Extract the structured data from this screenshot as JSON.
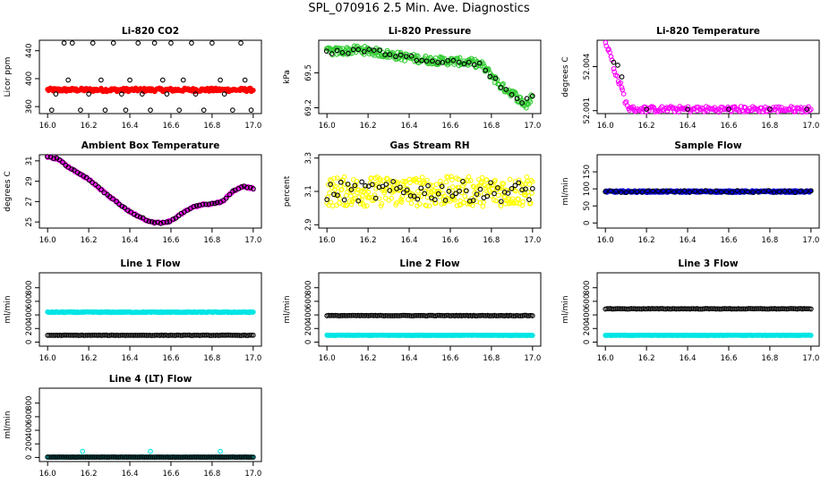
{
  "page_title": "SPL_070916  2.5 Min. Ave. Diagnostics",
  "chart_data": [
    {
      "id": "co2",
      "type": "scatter",
      "title": "Li-820 CO2",
      "ylabel": "Licor ppm",
      "xlabel": "",
      "xlim": [
        16.0,
        17.0
      ],
      "ylim": [
        350,
        455
      ],
      "xticks": [
        "16.0",
        "16.2",
        "16.4",
        "16.6",
        "16.8",
        "17.0"
      ],
      "yticks": [
        {
          "v": 360,
          "label": "360"
        },
        {
          "v": 400,
          "label": "400"
        },
        {
          "v": 440,
          "label": "440"
        }
      ],
      "series": [
        {
          "name": "co2-dense",
          "color": "#ff0000",
          "kind": "band",
          "base": 384,
          "jitter": 2.5,
          "n": 220,
          "filled": true
        },
        {
          "name": "co2-outliers",
          "color": "#000000",
          "kind": "points",
          "x": [
            16.02,
            16.04,
            16.08,
            16.1,
            16.12,
            16.16,
            16.2,
            16.22,
            16.26,
            16.28,
            16.32,
            16.36,
            16.38,
            16.4,
            16.44,
            16.46,
            16.5,
            16.52,
            16.56,
            16.58,
            16.6,
            16.64,
            16.66,
            16.7,
            16.72,
            16.76,
            16.8,
            16.84,
            16.86,
            16.9,
            16.94,
            16.96,
            16.99
          ],
          "y": [
            355,
            378,
            451,
            398,
            451,
            355,
            378,
            451,
            398,
            355,
            451,
            378,
            355,
            398,
            451,
            378,
            355,
            451,
            398,
            378,
            451,
            355,
            398,
            451,
            378,
            355,
            451,
            398,
            378,
            355,
            451,
            398,
            355
          ]
        }
      ]
    },
    {
      "id": "pressure",
      "type": "scatter",
      "title": "Li-820 Pressure",
      "ylabel": "kPa",
      "xlabel": "",
      "xlim": [
        16.0,
        17.0
      ],
      "ylim": [
        69.15,
        69.78
      ],
      "xticks": [
        "16.0",
        "16.2",
        "16.4",
        "16.6",
        "16.8",
        "17.0"
      ],
      "yticks": [
        {
          "v": 69.2,
          "label": "69.2"
        },
        {
          "v": 69.5,
          "label": "69.5"
        }
      ],
      "series": [
        {
          "name": "pressure-dense",
          "color": "#33cc33",
          "kind": "curve",
          "xs": [
            16.0,
            16.1,
            16.15,
            16.2,
            16.3,
            16.4,
            16.5,
            16.6,
            16.7,
            16.75,
            16.8,
            16.85,
            16.9,
            16.95,
            16.97,
            17.0
          ],
          "ys": [
            69.68,
            69.69,
            69.7,
            69.69,
            69.66,
            69.63,
            69.61,
            69.6,
            69.59,
            69.57,
            69.48,
            69.38,
            69.33,
            69.25,
            69.22,
            69.3
          ],
          "jitter": 0.035,
          "n": 260,
          "filled": false
        },
        {
          "name": "pressure-outliers",
          "color": "#000000",
          "kind": "curve",
          "xs": [
            16.0,
            16.2,
            16.4,
            16.6,
            16.75,
            16.85,
            16.95,
            17.0
          ],
          "ys": [
            69.67,
            69.7,
            69.63,
            69.6,
            69.57,
            69.38,
            69.25,
            69.32
          ],
          "jitter": 0.02,
          "n": 40,
          "filled": false
        }
      ]
    },
    {
      "id": "licor-temp",
      "type": "scatter",
      "title": "Li-820 Temperature",
      "ylabel": "degrees C",
      "xlabel": "",
      "xlim": [
        16.0,
        17.0
      ],
      "ylim": [
        52.0008,
        52.0058
      ],
      "xticks": [
        "16.0",
        "16.2",
        "16.4",
        "16.6",
        "16.8",
        "17.0"
      ],
      "yticks": [
        {
          "v": 52.001,
          "label": "52.001"
        },
        {
          "v": 52.004,
          "label": "52.004"
        }
      ],
      "series": [
        {
          "name": "licor-temp-dense",
          "color": "#ff00ff",
          "kind": "curve",
          "xs": [
            16.0,
            16.02,
            16.05,
            16.08,
            16.1,
            16.12,
            16.2,
            16.4,
            16.6,
            16.8,
            17.0
          ],
          "ys": [
            52.0055,
            52.005,
            52.0035,
            52.0025,
            52.0015,
            52.0011,
            52.0011,
            52.0011,
            52.0011,
            52.0011,
            52.0011
          ],
          "jitter": 0.0002,
          "n": 180,
          "filled": false
        },
        {
          "name": "licor-temp-black",
          "color": "#000000",
          "kind": "points",
          "x": [
            16.04,
            16.06,
            16.08,
            16.2,
            16.4,
            16.6,
            16.8,
            16.98
          ],
          "y": [
            52.0043,
            52.0041,
            52.0033,
            52.0011,
            52.0011,
            52.0011,
            52.0011,
            52.0011
          ]
        }
      ]
    },
    {
      "id": "box-temp",
      "type": "scatter",
      "title": "Ambient Box Temperature",
      "ylabel": "degrees C",
      "xlabel": "",
      "xlim": [
        16.0,
        17.0
      ],
      "ylim": [
        24.4,
        31.6
      ],
      "xticks": [
        "16.0",
        "16.2",
        "16.4",
        "16.6",
        "16.8",
        "17.0"
      ],
      "yticks": [
        {
          "v": 25,
          "label": "25"
        },
        {
          "v": 27,
          "label": "27"
        },
        {
          "v": 29,
          "label": "29"
        },
        {
          "v": 31,
          "label": "31"
        }
      ],
      "series": [
        {
          "name": "box-temp-dense",
          "color": "#ff00ff",
          "kind": "curve",
          "xs": [
            16.0,
            16.05,
            16.1,
            16.2,
            16.3,
            16.4,
            16.5,
            16.55,
            16.6,
            16.65,
            16.7,
            16.75,
            16.8,
            16.85,
            16.9,
            16.95,
            17.0
          ],
          "ys": [
            31.4,
            31.2,
            30.4,
            29.2,
            27.5,
            26.0,
            25.0,
            24.9,
            25.1,
            25.8,
            26.4,
            26.7,
            26.8,
            27.0,
            28.0,
            28.5,
            28.3
          ],
          "jitter": 0.08,
          "n": 200,
          "filled": false
        },
        {
          "name": "box-temp-black",
          "color": "#000000",
          "kind": "curve",
          "xs": [
            16.0,
            16.05,
            16.1,
            16.2,
            16.3,
            16.4,
            16.5,
            16.55,
            16.6,
            16.65,
            16.7,
            16.75,
            16.8,
            16.85,
            16.9,
            16.95,
            17.0
          ],
          "ys": [
            31.4,
            31.2,
            30.4,
            29.2,
            27.5,
            26.0,
            25.0,
            24.9,
            25.1,
            25.8,
            26.4,
            26.7,
            26.8,
            27.0,
            28.0,
            28.5,
            28.3
          ],
          "jitter": 0.05,
          "n": 70,
          "filled": false
        }
      ]
    },
    {
      "id": "rh",
      "type": "scatter",
      "title": "Gas Stream RH",
      "ylabel": "percent",
      "xlabel": "",
      "xlim": [
        16.0,
        17.0
      ],
      "ylim": [
        2.88,
        3.32
      ],
      "xticks": [
        "16.0",
        "16.2",
        "16.4",
        "16.6",
        "16.8",
        "17.0"
      ],
      "yticks": [
        {
          "v": 2.9,
          "label": "2.9"
        },
        {
          "v": 3.1,
          "label": "3.1"
        },
        {
          "v": 3.3,
          "label": "3.3"
        }
      ],
      "series": [
        {
          "name": "rh-dense",
          "color": "#ffff00",
          "kind": "band",
          "base": 3.1,
          "jitter": 0.09,
          "n": 320,
          "filled": false
        },
        {
          "name": "rh-black",
          "color": "#000000",
          "kind": "band",
          "base": 3.1,
          "jitter": 0.06,
          "n": 60,
          "filled": false
        }
      ]
    },
    {
      "id": "sample-flow",
      "type": "scatter",
      "title": "Sample Flow",
      "ylabel": "ml/min",
      "xlabel": "",
      "xlim": [
        16.0,
        17.0
      ],
      "ylim": [
        -15,
        200
      ],
      "xticks": [
        "16.0",
        "16.2",
        "16.4",
        "16.6",
        "16.8",
        "17.0"
      ],
      "yticks": [
        {
          "v": 0,
          "label": "0"
        },
        {
          "v": 50,
          "label": "50"
        },
        {
          "v": 100,
          "label": "100"
        },
        {
          "v": 150,
          "label": "150"
        }
      ],
      "series": [
        {
          "name": "sample-flow-dense",
          "color": "#0000cc",
          "kind": "band",
          "base": 92,
          "jitter": 2.5,
          "n": 260,
          "filled": true
        },
        {
          "name": "sample-flow-black",
          "color": "#000000",
          "kind": "band",
          "base": 92,
          "jitter": 3,
          "n": 40,
          "filled": false
        }
      ]
    },
    {
      "id": "line1",
      "type": "scatter",
      "title": "Line 1 Flow",
      "ylabel": "ml/min",
      "xlabel": "",
      "xlim": [
        16.0,
        17.0
      ],
      "ylim": [
        -60,
        1020
      ],
      "xticks": [
        "16.0",
        "16.2",
        "16.4",
        "16.6",
        "16.8",
        "17.0"
      ],
      "yticks": [
        {
          "v": 0,
          "label": "0"
        },
        {
          "v": 200,
          "label": "200"
        },
        {
          "v": 400,
          "label": "400"
        },
        {
          "v": 600,
          "label": "600"
        },
        {
          "v": 800,
          "label": "800"
        }
      ],
      "series": [
        {
          "name": "line1-cyan",
          "color": "#00e5e5",
          "kind": "band",
          "base": 440,
          "jitter": 6,
          "n": 220,
          "filled": true
        },
        {
          "name": "line1-black",
          "color": "#000000",
          "kind": "band",
          "base": 100,
          "jitter": 3,
          "n": 120,
          "filled": false
        }
      ]
    },
    {
      "id": "line2",
      "type": "scatter",
      "title": "Line 2 Flow",
      "ylabel": "ml/min",
      "xlabel": "",
      "xlim": [
        16.0,
        17.0
      ],
      "ylim": [
        -60,
        1020
      ],
      "xticks": [
        "16.0",
        "16.2",
        "16.4",
        "16.6",
        "16.8",
        "17.0"
      ],
      "yticks": [
        {
          "v": 0,
          "label": "0"
        },
        {
          "v": 200,
          "label": "200"
        },
        {
          "v": 400,
          "label": "400"
        },
        {
          "v": 600,
          "label": "600"
        },
        {
          "v": 800,
          "label": "800"
        }
      ],
      "series": [
        {
          "name": "line2-cyan",
          "color": "#00e5e5",
          "kind": "band",
          "base": 100,
          "jitter": 3,
          "n": 220,
          "filled": true
        },
        {
          "name": "line2-black",
          "color": "#000000",
          "kind": "band",
          "base": 390,
          "jitter": 4,
          "n": 120,
          "filled": false
        }
      ]
    },
    {
      "id": "line3",
      "type": "scatter",
      "title": "Line 3 Flow",
      "ylabel": "ml/min",
      "xlabel": "",
      "xlim": [
        16.0,
        17.0
      ],
      "ylim": [
        -60,
        1020
      ],
      "xticks": [
        "16.0",
        "16.2",
        "16.4",
        "16.6",
        "16.8",
        "17.0"
      ],
      "yticks": [
        {
          "v": 0,
          "label": "0"
        },
        {
          "v": 200,
          "label": "200"
        },
        {
          "v": 400,
          "label": "400"
        },
        {
          "v": 600,
          "label": "600"
        },
        {
          "v": 800,
          "label": "800"
        }
      ],
      "series": [
        {
          "name": "line3-cyan",
          "color": "#00e5e5",
          "kind": "band",
          "base": 100,
          "jitter": 3,
          "n": 220,
          "filled": true
        },
        {
          "name": "line3-black",
          "color": "#000000",
          "kind": "band",
          "base": 490,
          "jitter": 4,
          "n": 120,
          "filled": false
        }
      ]
    },
    {
      "id": "line4",
      "type": "scatter",
      "title": "Line 4 (LT) Flow",
      "ylabel": "ml/min",
      "xlabel": "",
      "xlim": [
        16.0,
        17.0
      ],
      "ylim": [
        -60,
        1020
      ],
      "xticks": [
        "16.0",
        "16.2",
        "16.4",
        "16.6",
        "16.8",
        "17.0"
      ],
      "yticks": [
        {
          "v": 0,
          "label": "0"
        },
        {
          "v": 200,
          "label": "200"
        },
        {
          "v": 400,
          "label": "400"
        },
        {
          "v": 600,
          "label": "600"
        },
        {
          "v": 800,
          "label": "800"
        }
      ],
      "series": [
        {
          "name": "line4-cyan",
          "color": "#00e5e5",
          "kind": "band",
          "base": 5,
          "jitter": 2,
          "n": 200,
          "filled": true
        },
        {
          "name": "line4-black",
          "color": "#000000",
          "kind": "band",
          "base": 5,
          "jitter": 2,
          "n": 120,
          "filled": false
        },
        {
          "name": "line4-cyan-spikes",
          "color": "#00e5e5",
          "kind": "points",
          "x": [
            16.17,
            16.5,
            16.84
          ],
          "y": [
            90,
            90,
            90
          ]
        }
      ]
    }
  ]
}
